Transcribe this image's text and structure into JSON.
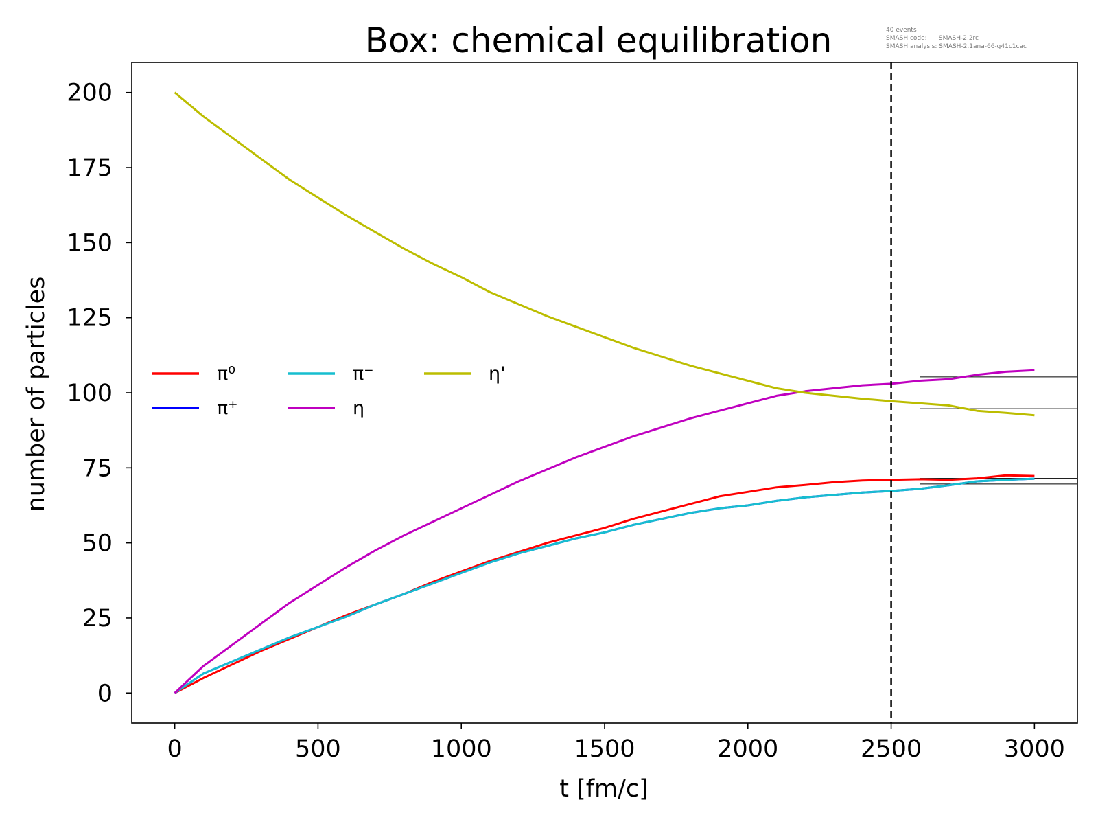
{
  "chart_data": {
    "type": "line",
    "title": "Box: chemical equilibration",
    "meta_lines": [
      "40 events",
      "SMASH code:      SMASH-2.2rc",
      "SMASH analysis: SMASH-2.1ana-66-g41c1cac"
    ],
    "xlabel": "t [fm/c]",
    "ylabel": "number of particles",
    "xlim": [
      -150,
      3150
    ],
    "ylim": [
      -10,
      210
    ],
    "xticks": [
      0,
      500,
      1000,
      1500,
      2000,
      2500,
      3000
    ],
    "yticks": [
      0,
      25,
      50,
      75,
      100,
      125,
      150,
      175,
      200
    ],
    "grid": false,
    "legend_position": "center-left",
    "legend_columns": 3,
    "vline": {
      "x": 2500,
      "style": "dashed",
      "color": "#000000"
    },
    "reference_lines": [
      {
        "y": 105.3,
        "x": [
          2600,
          3150
        ],
        "color": "#000000"
      },
      {
        "y": 94.7,
        "x": [
          2600,
          3150
        ],
        "color": "#000000"
      },
      {
        "y": 71.5,
        "x": [
          2600,
          3150
        ],
        "color": "#000000"
      },
      {
        "y": 69.6,
        "x": [
          2600,
          3150
        ],
        "color": "#000000"
      }
    ],
    "x": [
      0,
      100,
      200,
      300,
      400,
      500,
      600,
      700,
      800,
      900,
      1000,
      1100,
      1200,
      1300,
      1400,
      1500,
      1600,
      1700,
      1800,
      1900,
      2000,
      2100,
      2200,
      2300,
      2400,
      2500,
      2600,
      2700,
      2800,
      2900,
      3000
    ],
    "series": [
      {
        "name": "π⁰",
        "color": "#ff0000",
        "values": [
          0,
          5,
          9.5,
          14,
          18,
          22,
          26,
          29.5,
          33,
          37,
          40.5,
          44,
          47,
          50,
          52.5,
          55,
          58,
          60.5,
          63,
          65.5,
          67,
          68.5,
          69.3,
          70.2,
          70.8,
          71,
          71.2,
          71,
          71.5,
          72.5,
          72.3
        ]
      },
      {
        "name": "π⁺",
        "color": "#0000ff",
        "values": [
          0,
          6.5,
          10.5,
          14.5,
          18.5,
          22,
          25.5,
          29.5,
          33,
          36.5,
          40,
          43.5,
          46.5,
          49,
          51.5,
          53.5,
          56,
          58,
          60,
          61.5,
          62.5,
          64,
          65.2,
          66,
          66.8,
          67.3,
          68,
          69.2,
          70.5,
          71,
          71.4
        ]
      },
      {
        "name": "π⁻",
        "color": "#17becf",
        "values": [
          0,
          6.5,
          10.5,
          14.5,
          18.5,
          22,
          25.5,
          29.5,
          33,
          36.5,
          40,
          43.5,
          46.5,
          49,
          51.5,
          53.5,
          56,
          58,
          60,
          61.5,
          62.5,
          64,
          65.2,
          66,
          66.8,
          67.3,
          68,
          69.2,
          70.5,
          71,
          71.4
        ]
      },
      {
        "name": "η",
        "color": "#bf00bf",
        "values": [
          0,
          9,
          16,
          23,
          30,
          36,
          42,
          47.5,
          52.5,
          57,
          61.5,
          66,
          70.5,
          74.5,
          78.5,
          82,
          85.5,
          88.5,
          91.5,
          94,
          96.5,
          99,
          100.5,
          101.5,
          102.5,
          103,
          104,
          104.5,
          106,
          107,
          107.5
        ]
      },
      {
        "name": "η'",
        "color": "#bcbd00",
        "values": [
          200,
          192,
          185,
          178,
          171,
          165,
          159,
          153.5,
          148,
          143,
          138.5,
          133.5,
          129.5,
          125.5,
          122,
          118.5,
          115,
          112,
          109,
          106.5,
          104,
          101.5,
          100,
          99,
          98,
          97.2,
          96.5,
          95.8,
          94,
          93.3,
          92.5
        ]
      }
    ]
  }
}
